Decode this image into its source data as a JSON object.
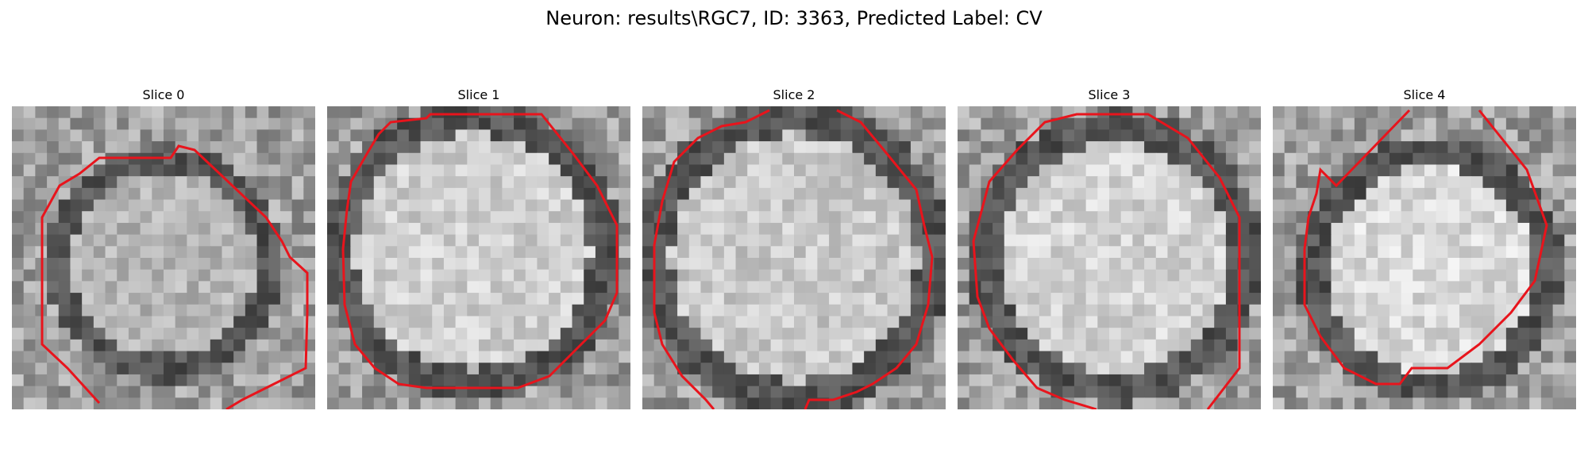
{
  "figure": {
    "title": "Neuron: results\\RGC7, ID: 3363, Predicted Label: CV",
    "panels": [
      {
        "title": "Slice 0",
        "content": "grayscale microscopy patch with red cell contour"
      },
      {
        "title": "Slice 1",
        "content": "grayscale microscopy patch with red cell contour"
      },
      {
        "title": "Slice 2",
        "content": "grayscale microscopy patch with red cell contour"
      },
      {
        "title": "Slice 3",
        "content": "grayscale microscopy patch with red cell contour"
      },
      {
        "title": "Slice 4",
        "content": "grayscale microscopy patch with red cell contour"
      }
    ]
  },
  "colors": {
    "contour": "#e8141c",
    "background": "#ffffff"
  }
}
